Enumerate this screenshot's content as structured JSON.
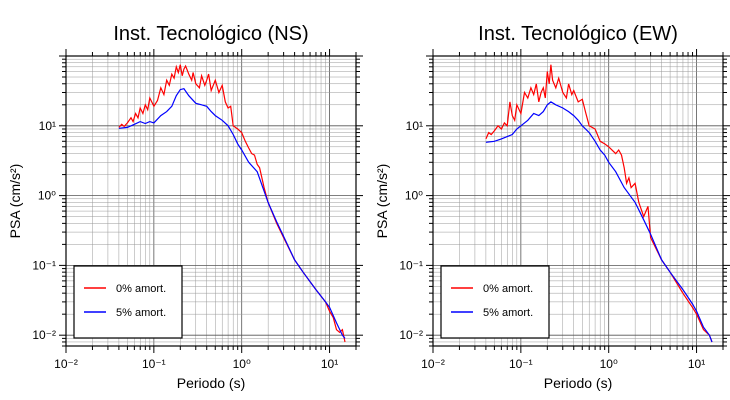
{
  "chart_data": [
    {
      "type": "line",
      "title": "Inst. Tecnológico (NS)",
      "xlabel": "Periodo (s)",
      "ylabel": "PSA (cm/s²)",
      "xscale": "log",
      "yscale": "log",
      "xlim": [
        0.01,
        20
      ],
      "ylim": [
        0.007,
        100
      ],
      "x_tick_labels": [
        "10⁻²",
        "10⁻¹",
        "10⁰",
        "10¹"
      ],
      "y_tick_labels": [
        "10⁻²",
        "10⁻¹",
        "10⁰",
        "10¹"
      ],
      "grid": true,
      "legend_position": "bottom-left",
      "series": [
        {
          "name": "0% amort.",
          "color": "#ff0000",
          "points": [
            [
              0.04,
              9.5
            ],
            [
              0.043,
              10.5
            ],
            [
              0.046,
              9.8
            ],
            [
              0.05,
              11
            ],
            [
              0.055,
              13
            ],
            [
              0.058,
              11.5
            ],
            [
              0.062,
              15
            ],
            [
              0.066,
              13
            ],
            [
              0.07,
              18
            ],
            [
              0.075,
              15
            ],
            [
              0.08,
              20
            ],
            [
              0.085,
              17
            ],
            [
              0.09,
              25
            ],
            [
              0.1,
              19
            ],
            [
              0.11,
              23
            ],
            [
              0.12,
              35
            ],
            [
              0.13,
              28
            ],
            [
              0.14,
              45
            ],
            [
              0.15,
              38
            ],
            [
              0.16,
              55
            ],
            [
              0.17,
              48
            ],
            [
              0.18,
              70
            ],
            [
              0.19,
              58
            ],
            [
              0.2,
              75
            ],
            [
              0.21,
              52
            ],
            [
              0.22,
              65
            ],
            [
              0.23,
              72
            ],
            [
              0.25,
              55
            ],
            [
              0.27,
              45
            ],
            [
              0.28,
              58
            ],
            [
              0.3,
              40
            ],
            [
              0.33,
              35
            ],
            [
              0.35,
              52
            ],
            [
              0.38,
              38
            ],
            [
              0.4,
              45
            ],
            [
              0.42,
              55
            ],
            [
              0.45,
              32
            ],
            [
              0.5,
              45
            ],
            [
              0.55,
              30
            ],
            [
              0.6,
              38
            ],
            [
              0.65,
              22
            ],
            [
              0.7,
              18
            ],
            [
              0.75,
              19
            ],
            [
              0.8,
              10
            ],
            [
              0.9,
              9
            ],
            [
              1.0,
              8
            ],
            [
              1.1,
              6
            ],
            [
              1.2,
              4.8
            ],
            [
              1.3,
              4
            ],
            [
              1.4,
              3.8
            ],
            [
              1.5,
              2.8
            ],
            [
              1.6,
              2.5
            ],
            [
              1.8,
              1.3
            ],
            [
              2.0,
              0.8
            ],
            [
              2.5,
              0.4
            ],
            [
              3.0,
              0.25
            ],
            [
              4.0,
              0.12
            ],
            [
              5.0,
              0.08
            ],
            [
              7.0,
              0.045
            ],
            [
              9.0,
              0.03
            ],
            [
              10.0,
              0.022
            ],
            [
              11.0,
              0.018
            ],
            [
              12.0,
              0.012
            ],
            [
              13.0,
              0.011
            ],
            [
              14.0,
              0.012
            ],
            [
              15.0,
              0.008
            ]
          ]
        },
        {
          "name": "5% amort.",
          "color": "#0000ff",
          "points": [
            [
              0.04,
              9.2
            ],
            [
              0.05,
              9.5
            ],
            [
              0.06,
              10.5
            ],
            [
              0.07,
              11.5
            ],
            [
              0.08,
              10.8
            ],
            [
              0.09,
              11.5
            ],
            [
              0.1,
              11
            ],
            [
              0.12,
              14
            ],
            [
              0.14,
              16
            ],
            [
              0.16,
              19
            ],
            [
              0.18,
              27
            ],
            [
              0.2,
              33
            ],
            [
              0.22,
              34
            ],
            [
              0.25,
              27
            ],
            [
              0.3,
              21
            ],
            [
              0.35,
              20
            ],
            [
              0.4,
              19
            ],
            [
              0.45,
              16
            ],
            [
              0.5,
              14
            ],
            [
              0.6,
              12
            ],
            [
              0.7,
              10
            ],
            [
              0.8,
              7.5
            ],
            [
              0.9,
              5.5
            ],
            [
              1.0,
              4.5
            ],
            [
              1.2,
              3
            ],
            [
              1.5,
              2.2
            ],
            [
              2.0,
              0.8
            ],
            [
              2.5,
              0.42
            ],
            [
              3.0,
              0.26
            ],
            [
              4.0,
              0.12
            ],
            [
              5.0,
              0.08
            ],
            [
              7.0,
              0.045
            ],
            [
              9.0,
              0.03
            ],
            [
              10.0,
              0.025
            ],
            [
              12.0,
              0.015
            ],
            [
              14.0,
              0.01
            ],
            [
              15.0,
              0.009
            ]
          ]
        }
      ]
    },
    {
      "type": "line",
      "title": "Inst. Tecnológico (EW)",
      "xlabel": "Periodo (s)",
      "ylabel": "PSA (cm/s²)",
      "xscale": "log",
      "yscale": "log",
      "xlim": [
        0.01,
        20
      ],
      "ylim": [
        0.007,
        100
      ],
      "x_tick_labels": [
        "10⁻²",
        "10⁻¹",
        "10⁰",
        "10¹"
      ],
      "y_tick_labels": [
        "10⁻²",
        "10⁻¹",
        "10⁰",
        "10¹"
      ],
      "grid": true,
      "legend_position": "bottom-left",
      "series": [
        {
          "name": "0% amort.",
          "color": "#ff0000",
          "points": [
            [
              0.04,
              6.5
            ],
            [
              0.043,
              8
            ],
            [
              0.046,
              7.5
            ],
            [
              0.05,
              8.5
            ],
            [
              0.055,
              10
            ],
            [
              0.06,
              9
            ],
            [
              0.065,
              11
            ],
            [
              0.07,
              10
            ],
            [
              0.075,
              22
            ],
            [
              0.08,
              14
            ],
            [
              0.085,
              12
            ],
            [
              0.09,
              20
            ],
            [
              0.1,
              15
            ],
            [
              0.11,
              30
            ],
            [
              0.12,
              25
            ],
            [
              0.13,
              35
            ],
            [
              0.14,
              28
            ],
            [
              0.15,
              40
            ],
            [
              0.16,
              22
            ],
            [
              0.17,
              30
            ],
            [
              0.18,
              35
            ],
            [
              0.19,
              25
            ],
            [
              0.2,
              60
            ],
            [
              0.21,
              40
            ],
            [
              0.22,
              75
            ],
            [
              0.23,
              45
            ],
            [
              0.25,
              35
            ],
            [
              0.27,
              48
            ],
            [
              0.3,
              30
            ],
            [
              0.33,
              25
            ],
            [
              0.35,
              40
            ],
            [
              0.38,
              28
            ],
            [
              0.4,
              32
            ],
            [
              0.45,
              22
            ],
            [
              0.5,
              24
            ],
            [
              0.55,
              15
            ],
            [
              0.6,
              10
            ],
            [
              0.7,
              9
            ],
            [
              0.8,
              6
            ],
            [
              0.9,
              5.5
            ],
            [
              1.0,
              5
            ],
            [
              1.2,
              4
            ],
            [
              1.3,
              4.5
            ],
            [
              1.4,
              3.8
            ],
            [
              1.5,
              2.5
            ],
            [
              1.6,
              1.5
            ],
            [
              1.7,
              1.8
            ],
            [
              1.8,
              1.3
            ],
            [
              2.0,
              1.5
            ],
            [
              2.2,
              0.8
            ],
            [
              2.5,
              0.5
            ],
            [
              2.8,
              0.7
            ],
            [
              3.0,
              0.25
            ],
            [
              4.0,
              0.12
            ],
            [
              5.0,
              0.08
            ],
            [
              7.0,
              0.04
            ],
            [
              9.0,
              0.025
            ],
            [
              10.0,
              0.02
            ],
            [
              12.0,
              0.012
            ],
            [
              14.0,
              0.01
            ],
            [
              15.0,
              0.008
            ]
          ]
        },
        {
          "name": "5% amort.",
          "color": "#0000ff",
          "points": [
            [
              0.04,
              5.8
            ],
            [
              0.05,
              6
            ],
            [
              0.06,
              6.5
            ],
            [
              0.07,
              7
            ],
            [
              0.08,
              7.5
            ],
            [
              0.09,
              9
            ],
            [
              0.1,
              10
            ],
            [
              0.12,
              12
            ],
            [
              0.14,
              15
            ],
            [
              0.16,
              14
            ],
            [
              0.18,
              16
            ],
            [
              0.2,
              20
            ],
            [
              0.22,
              22
            ],
            [
              0.25,
              20
            ],
            [
              0.3,
              18
            ],
            [
              0.35,
              16
            ],
            [
              0.4,
              14
            ],
            [
              0.45,
              12
            ],
            [
              0.5,
              10
            ],
            [
              0.6,
              8
            ],
            [
              0.7,
              6
            ],
            [
              0.8,
              4.5
            ],
            [
              0.9,
              3.8
            ],
            [
              1.0,
              3
            ],
            [
              1.2,
              2.2
            ],
            [
              1.5,
              1.3
            ],
            [
              2.0,
              0.8
            ],
            [
              2.5,
              0.45
            ],
            [
              3.0,
              0.28
            ],
            [
              4.0,
              0.12
            ],
            [
              5.0,
              0.08
            ],
            [
              7.0,
              0.045
            ],
            [
              9.0,
              0.028
            ],
            [
              10.0,
              0.022
            ],
            [
              12.0,
              0.013
            ],
            [
              14.0,
              0.01
            ],
            [
              15.0,
              0.008
            ]
          ]
        }
      ]
    }
  ]
}
